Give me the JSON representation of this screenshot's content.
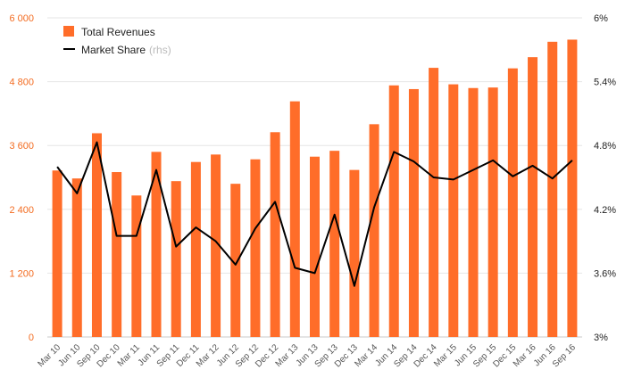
{
  "chart_data": {
    "type": "bar",
    "categories": [
      "Mar 10",
      "Jun 10",
      "Sep 10",
      "Dec 10",
      "Mar 11",
      "Jun 11",
      "Sep 11",
      "Dec 11",
      "Mar 12",
      "Jun 12",
      "Sep 12",
      "Dec 12",
      "Mar 13",
      "Jun 13",
      "Sep 13",
      "Dec 13",
      "Mar 14",
      "Jun 14",
      "Sep 14",
      "Dec 14",
      "Mar 15",
      "Jun 15",
      "Sep 15",
      "Dec 15",
      "Mar 16",
      "Jun 16",
      "Sep 16"
    ],
    "series": [
      {
        "name": "Total Revenues",
        "type": "bar",
        "axis": "left",
        "color": "#ff6d29",
        "values": [
          3130,
          2980,
          3830,
          3100,
          2660,
          3480,
          2930,
          3290,
          3430,
          2880,
          3340,
          3850,
          4430,
          3390,
          3500,
          3140,
          4000,
          4730,
          4660,
          5060,
          4750,
          4680,
          4690,
          5050,
          5260,
          5550,
          5590
        ]
      },
      {
        "name": "Market Share",
        "note": "(rhs)",
        "type": "line",
        "axis": "right",
        "color": "#000000",
        "values": [
          4.6,
          4.35,
          4.83,
          3.95,
          3.95,
          4.57,
          3.85,
          4.03,
          3.9,
          3.68,
          4.02,
          4.27,
          3.65,
          3.6,
          4.15,
          3.48,
          4.22,
          4.74,
          4.65,
          4.5,
          4.48,
          4.57,
          4.66,
          4.51,
          4.61,
          4.49,
          4.66
        ]
      }
    ],
    "y_left": {
      "ylim": [
        0,
        6000
      ],
      "ticks": [
        "0",
        "1 200",
        "2 400",
        "3 600",
        "4 800",
        "6 000"
      ],
      "color": "#f36c21"
    },
    "y_right": {
      "ylim": [
        3,
        6
      ],
      "ticks": [
        "3%",
        "3.6%",
        "4.2%",
        "4.8%",
        "5.4%",
        "6%"
      ]
    },
    "grid": true,
    "legend_position": "top-left"
  }
}
